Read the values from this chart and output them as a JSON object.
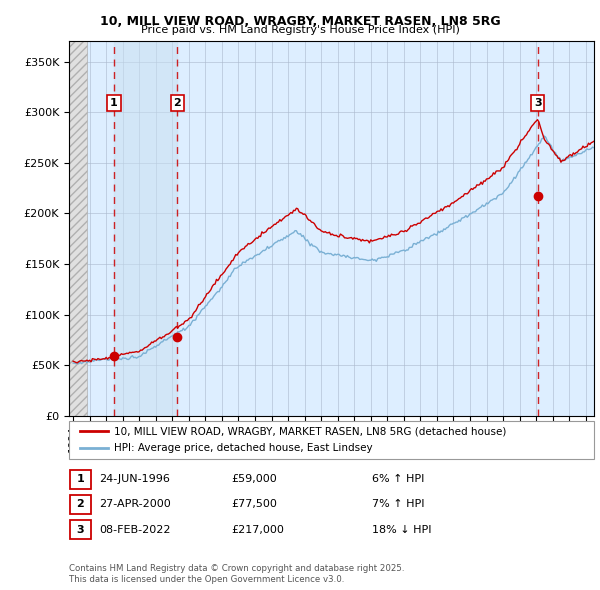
{
  "title1": "10, MILL VIEW ROAD, WRAGBY, MARKET RASEN, LN8 5RG",
  "title2": "Price paid vs. HM Land Registry's House Price Index (HPI)",
  "xlim_start": 1993.75,
  "xlim_end": 2025.5,
  "ylim_min": 0,
  "ylim_max": 370000,
  "yticks": [
    0,
    50000,
    100000,
    150000,
    200000,
    250000,
    300000,
    350000
  ],
  "ytick_labels": [
    "£0",
    "£50K",
    "£100K",
    "£150K",
    "£200K",
    "£250K",
    "£300K",
    "£350K"
  ],
  "sale_dates": [
    1996.47,
    2000.3,
    2022.1
  ],
  "sale_prices": [
    59000,
    77500,
    217000
  ],
  "sale_labels": [
    "1",
    "2",
    "3"
  ],
  "sale_pcts": [
    "6% ↑ HPI",
    "7% ↑ HPI",
    "18% ↓ HPI"
  ],
  "sale_date_strs": [
    "24-JUN-1996",
    "27-APR-2000",
    "08-FEB-2022"
  ],
  "sale_price_strs": [
    "£59,000",
    "£77,500",
    "£217,000"
  ],
  "legend_line1": "10, MILL VIEW ROAD, WRAGBY, MARKET RASEN, LN8 5RG (detached house)",
  "legend_line2": "HPI: Average price, detached house, East Lindsey",
  "footer1": "Contains HM Land Registry data © Crown copyright and database right 2025.",
  "footer2": "This data is licensed under the Open Government Licence v3.0.",
  "line_color_red": "#cc0000",
  "line_color_blue": "#7ab0d4",
  "label_box_color": "#cc0000",
  "chart_bg": "#ddeeff",
  "hatch_bg": "#cccccc"
}
